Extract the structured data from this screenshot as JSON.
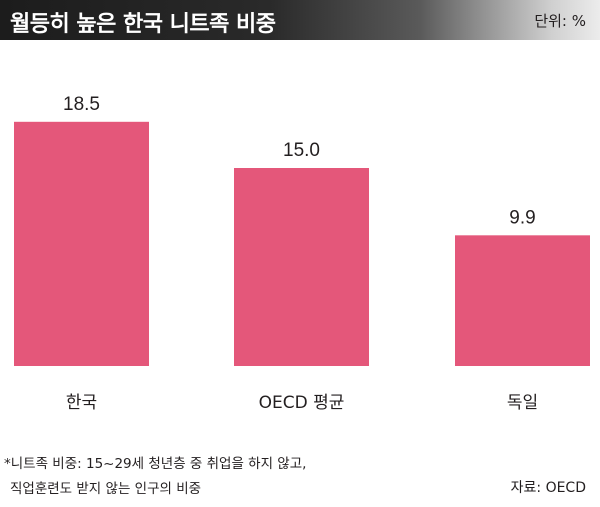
{
  "header": {
    "title": "월등히 높은 한국 니트족 비중",
    "unit": "단위: %"
  },
  "chart_data": {
    "type": "bar",
    "title": "월등히 높은 한국 니트족 비중",
    "unit": "%",
    "categories": [
      "한국",
      "OECD 평균",
      "독일"
    ],
    "values": [
      18.5,
      15.0,
      9.9
    ],
    "value_labels": [
      "18.5",
      "15.0",
      "9.9"
    ],
    "bar_color": "#e4577a",
    "grid": false,
    "ylim": [
      0,
      20
    ]
  },
  "footnote": {
    "line1": "*니트족 비중: 15~29세 청년층 중 취업을 하지 않고,",
    "line2": "직업훈련도 받지 않는 인구의 비중"
  },
  "source": "자료: OECD"
}
